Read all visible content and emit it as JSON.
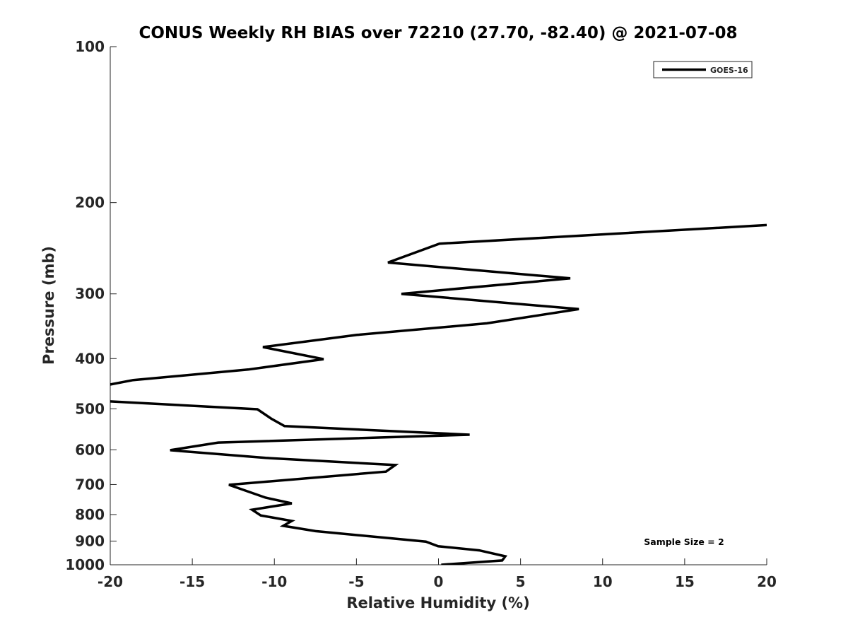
{
  "chart_data": {
    "type": "line",
    "title": "CONUS Weekly RH BIAS over 72210 (27.70, -82.40) @ 2021-07-08",
    "xlabel": "Relative Humidity (%)",
    "ylabel": "Pressure (mb)",
    "xlim": [
      -20,
      20
    ],
    "ylim": [
      100,
      1000
    ],
    "yscale": "log",
    "yreversed": true,
    "xticks": [
      -20,
      -15,
      -10,
      -5,
      0,
      5,
      10,
      15,
      20
    ],
    "yticks": [
      100,
      200,
      300,
      400,
      500,
      600,
      700,
      800,
      900,
      1000
    ],
    "grid": false,
    "legend_position": "top-right",
    "annotation": "Sample Size = 2",
    "series": [
      {
        "name": "GOES-16",
        "color": "#000000",
        "x": [
          20,
          0.06,
          -3.08,
          8.03,
          -2.26,
          8.55,
          2.95,
          -4.97,
          -10.7,
          -7.0,
          -11.6,
          -18.6,
          -23,
          -20.5,
          -11.03,
          -10.2,
          -9.38,
          1.9,
          -13.42,
          -16.35,
          -10.54,
          -2.63,
          -3.2,
          -12.77,
          -10.54,
          -8.94,
          -11.36,
          -10.83,
          -8.94,
          -9.46,
          -7.49,
          -0.77,
          -0.02,
          2.48,
          4.07,
          3.88,
          0.17
        ],
        "p": [
          221,
          240,
          261,
          280,
          300,
          321,
          342,
          360,
          380,
          401,
          420,
          440,
          468,
          483,
          501,
          522,
          540,
          561,
          581,
          601,
          622,
          642,
          661,
          701,
          742,
          761,
          783,
          803,
          823,
          841,
          861,
          902,
          921,
          938,
          963,
          981,
          1000
        ]
      }
    ]
  }
}
